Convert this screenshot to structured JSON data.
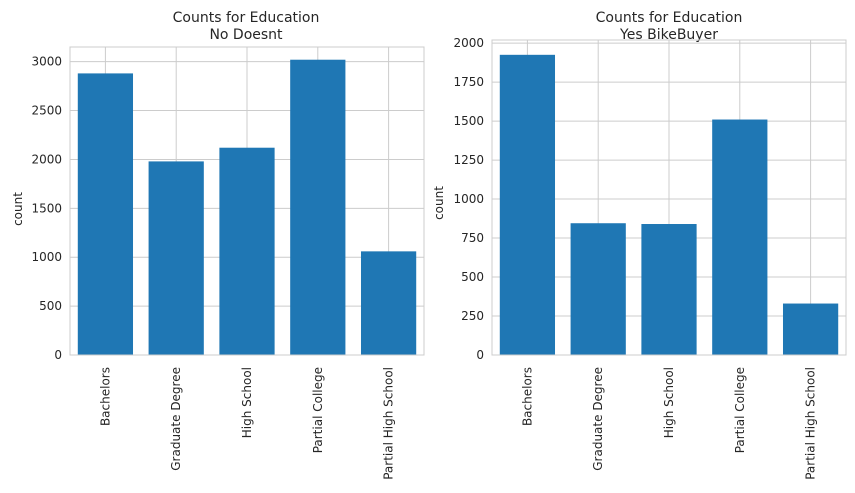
{
  "chart_data": [
    {
      "type": "bar",
      "title": "Counts for Education",
      "subtitle": "No Doesnt",
      "ylabel": "count",
      "xlabel": "",
      "categories": [
        "Bachelors",
        "Graduate Degree",
        "High School",
        "Partial College",
        "Partial High School"
      ],
      "values": [
        2880,
        1980,
        2120,
        3020,
        1060
      ],
      "ylim": [
        0,
        3150
      ],
      "yticks": [
        0,
        500,
        1000,
        1500,
        2000,
        2500,
        3000
      ],
      "ytick_labels": [
        "0",
        "500",
        "1000",
        "1500",
        "2000",
        "2500",
        "3000"
      ],
      "grid": true,
      "bar_color": "#1f77b4"
    },
    {
      "type": "bar",
      "title": "Counts for Education",
      "subtitle": "Yes BikeBuyer",
      "ylabel": "count",
      "xlabel": "",
      "categories": [
        "Bachelors",
        "Graduate Degree",
        "High School",
        "Partial College",
        "Partial High School"
      ],
      "values": [
        1925,
        845,
        840,
        1510,
        330
      ],
      "ylim": [
        0,
        2020
      ],
      "yticks": [
        0,
        250,
        500,
        750,
        1000,
        1250,
        1500,
        1750,
        2000
      ],
      "ytick_labels": [
        "0",
        "250",
        "500",
        "750",
        "1000",
        "1250",
        "1500",
        "1750",
        "2000"
      ],
      "grid": true,
      "bar_color": "#1f77b4"
    }
  ]
}
